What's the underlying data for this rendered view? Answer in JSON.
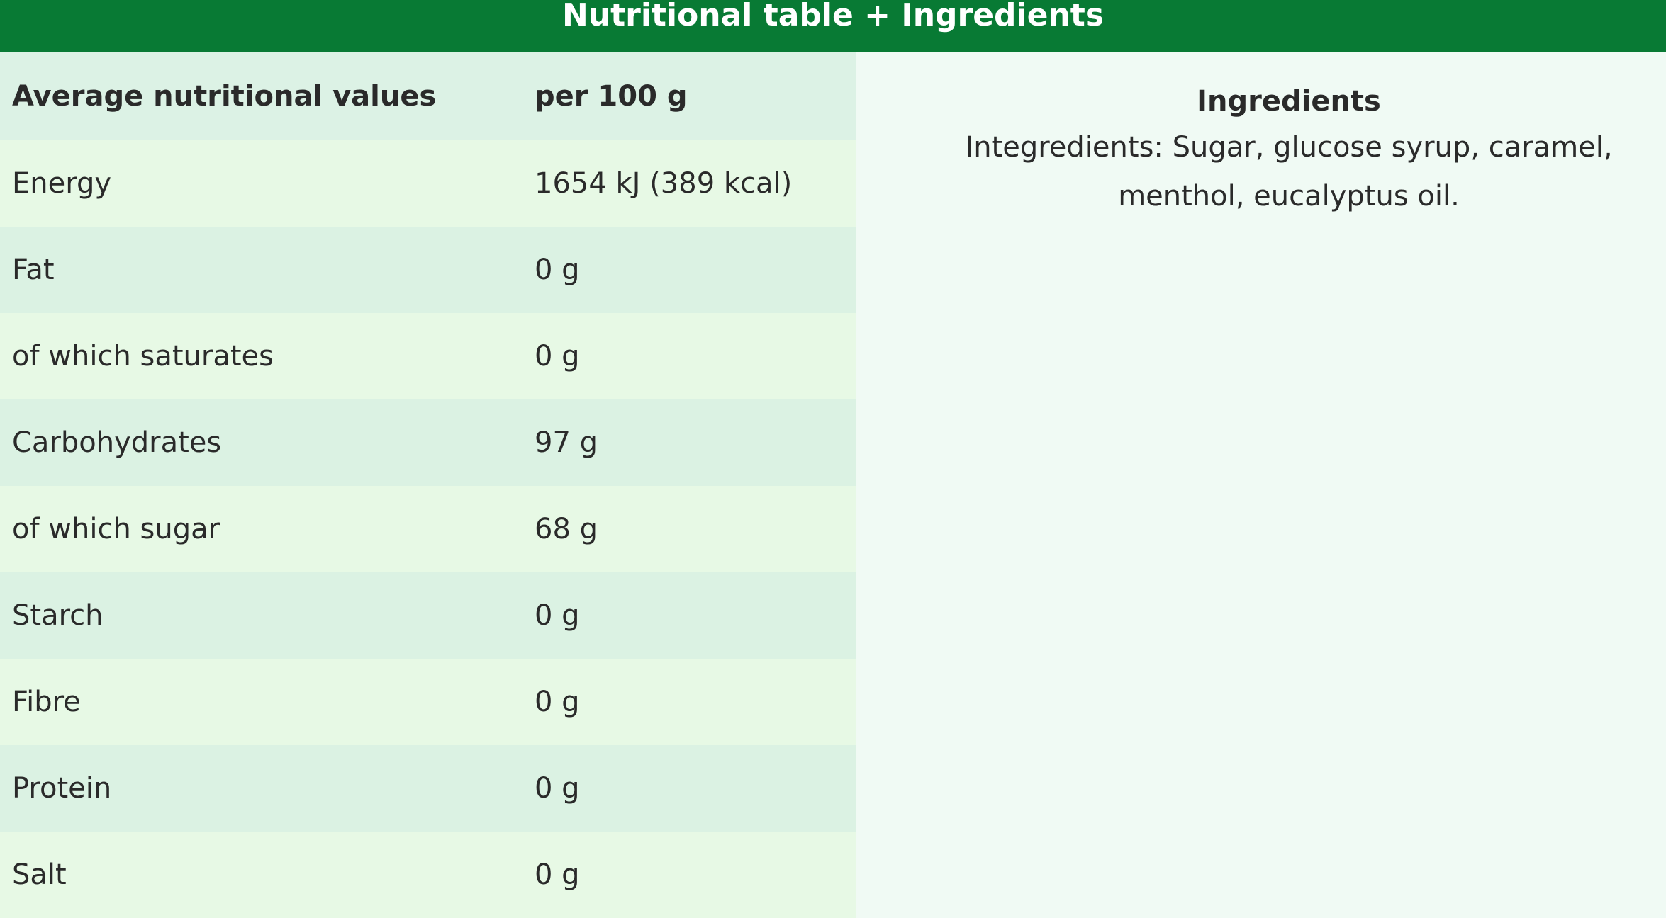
{
  "header": {
    "title": "Nutritional table + Ingredients"
  },
  "table": {
    "headers": [
      "Average nutritional values",
      "per 100 g"
    ],
    "rows": [
      [
        "Energy",
        "1654 kJ (389 kcal)"
      ],
      [
        "Fat",
        "0 g"
      ],
      [
        "of which saturates",
        "0 g"
      ],
      [
        "Carbohydrates",
        "97 g"
      ],
      [
        "of which sugar",
        "68 g"
      ],
      [
        "Starch",
        "0 g"
      ],
      [
        "Fibre",
        "0 g"
      ],
      [
        "Protein",
        "0 g"
      ],
      [
        "Salt",
        "0 g"
      ]
    ]
  },
  "ingredients": {
    "title": "Ingredients",
    "text": "Integredients: Sugar, glucose syrup, caramel, menthol, eucalyptus oil."
  }
}
